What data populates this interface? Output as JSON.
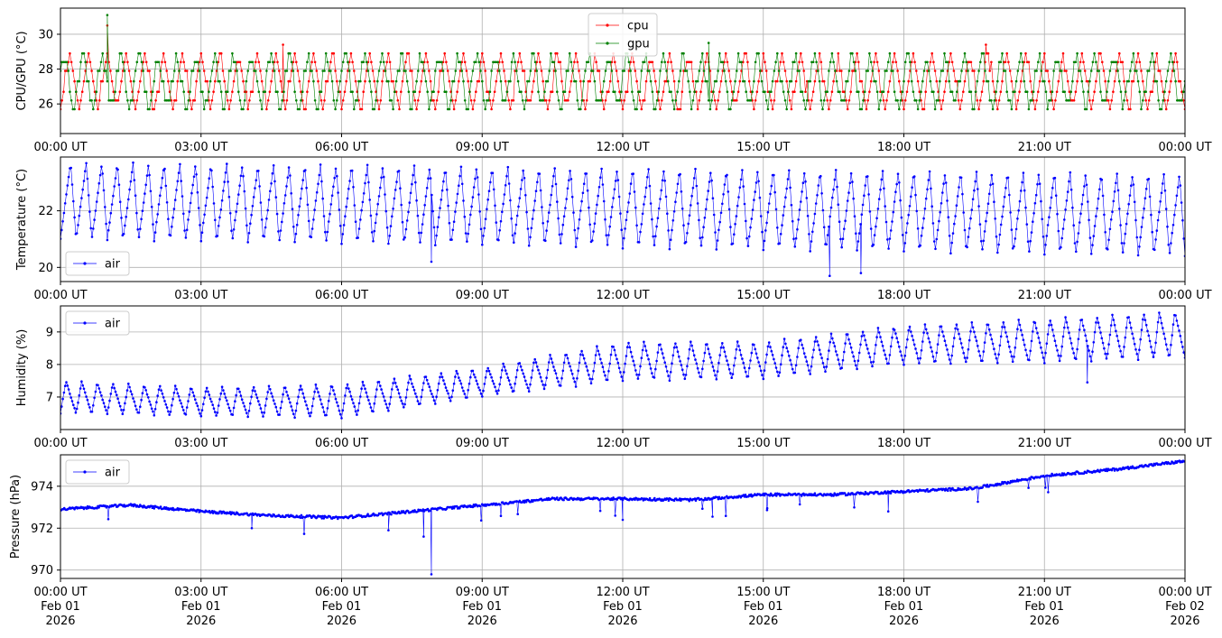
{
  "figure": {
    "background": "#ffffff",
    "grid_color": "#b0b0b0"
  },
  "chart_data": [
    {
      "type": "line",
      "ylabel": "CPU/GPU (°C)",
      "ylim": [
        24.3,
        31.5
      ],
      "yticks": [
        26,
        28,
        30
      ],
      "xlim": [
        "2026-02-01T00:00Z",
        "2026-02-02T00:00Z"
      ],
      "xtick_labels": [
        "00:00 UT",
        "03:00 UT",
        "06:00 UT",
        "09:00 UT",
        "12:00 UT",
        "15:00 UT",
        "18:00 UT",
        "21:00 UT",
        "00:00 UT"
      ],
      "grid": true,
      "legend": {
        "placement": "upper center",
        "entries": [
          "cpu",
          "gpu"
        ]
      },
      "series": [
        {
          "name": "cpu",
          "color": "#ff0000",
          "level_values": [
            25.7,
            26.2,
            26.7,
            27.3,
            27.9,
            28.4,
            28.9
          ],
          "typical_min": 25.7,
          "typical_max": 28.9,
          "spikes": [
            [
              "2026-02-01T01:00Z",
              30.5
            ],
            [
              "2026-02-01T04:45Z",
              29.4
            ],
            [
              "2026-02-01T19:45Z",
              29.4
            ]
          ]
        },
        {
          "name": "gpu",
          "color": "#008000",
          "level_values": [
            25.7,
            26.2,
            26.7,
            27.3,
            27.9,
            28.4,
            28.9
          ],
          "typical_min": 25.7,
          "typical_max": 28.9,
          "spikes": [
            [
              "2026-02-01T01:00Z",
              31.1
            ],
            [
              "2026-02-01T13:50Z",
              29.5
            ]
          ]
        }
      ]
    },
    {
      "type": "line",
      "ylabel": "Temperature (°C)",
      "ylim": [
        19.5,
        23.9
      ],
      "yticks": [
        20,
        22
      ],
      "xlim": [
        "2026-02-01T00:00Z",
        "2026-02-02T00:00Z"
      ],
      "xtick_labels": [
        "00:00 UT",
        "03:00 UT",
        "06:00 UT",
        "09:00 UT",
        "12:00 UT",
        "15:00 UT",
        "18:00 UT",
        "21:00 UT",
        "00:00 UT"
      ],
      "grid": true,
      "legend": {
        "placement": "lower left",
        "entries": [
          "air"
        ]
      },
      "series": [
        {
          "name": "air",
          "color": "#0000ff",
          "cycle_period_minutes": 20,
          "max_start": 23.7,
          "max_end": 23.3,
          "min_start": 21.0,
          "min_end": 20.4,
          "dips": [
            [
              "2026-02-01T07:55Z",
              20.2
            ],
            [
              "2026-02-01T16:25Z",
              19.7
            ],
            [
              "2026-02-01T17:05Z",
              19.8
            ]
          ]
        }
      ]
    },
    {
      "type": "line",
      "ylabel": "Humidity (%)",
      "ylim": [
        6.0,
        9.8
      ],
      "yticks": [
        7,
        8,
        9
      ],
      "xlim": [
        "2026-02-01T00:00Z",
        "2026-02-02T00:00Z"
      ],
      "xtick_labels": [
        "00:00 UT",
        "03:00 UT",
        "06:00 UT",
        "09:00 UT",
        "12:00 UT",
        "15:00 UT",
        "18:00 UT",
        "21:00 UT",
        "00:00 UT"
      ],
      "grid": true,
      "legend": {
        "placement": "upper left",
        "entries": [
          "air"
        ]
      },
      "series": [
        {
          "name": "air",
          "color": "#0000ff",
          "cycle_period_minutes": 20,
          "envelope": [
            [
              "2026-02-01T00:00Z",
              6.5,
              7.5
            ],
            [
              "2026-02-01T03:00Z",
              6.4,
              7.3
            ],
            [
              "2026-02-01T06:00Z",
              6.35,
              7.4
            ],
            [
              "2026-02-01T09:00Z",
              7.0,
              7.9
            ],
            [
              "2026-02-01T12:00Z",
              7.5,
              8.7
            ],
            [
              "2026-02-01T15:00Z",
              7.55,
              8.7
            ],
            [
              "2026-02-01T18:00Z",
              8.0,
              9.2
            ],
            [
              "2026-02-01T21:00Z",
              8.05,
              9.4
            ],
            [
              "2026-02-02T00:00Z",
              8.2,
              9.65
            ]
          ],
          "dips": [
            [
              "2026-02-01T21:55Z",
              7.45
            ]
          ]
        }
      ]
    },
    {
      "type": "line",
      "ylabel": "Pressure (hPa)",
      "ylim": [
        969.6,
        975.5
      ],
      "yticks": [
        970,
        972,
        974
      ],
      "xlim": [
        "2026-02-01T00:00Z",
        "2026-02-02T00:00Z"
      ],
      "xtick_labels": [
        "00:00 UT\nFeb 01\n2026",
        "03:00 UT\nFeb 01\n2026",
        "06:00 UT\nFeb 01\n2026",
        "09:00 UT\nFeb 01\n2026",
        "12:00 UT\nFeb 01\n2026",
        "15:00 UT\nFeb 01\n2026",
        "18:00 UT\nFeb 01\n2026",
        "21:00 UT\nFeb 01\n2026",
        "00:00 UT\nFeb 02\n2026"
      ],
      "grid": true,
      "legend": {
        "placement": "upper left",
        "entries": [
          "air"
        ]
      },
      "series": [
        {
          "name": "air",
          "color": "#0000ff",
          "trend": [
            [
              "2026-02-01T00:00Z",
              972.9
            ],
            [
              "2026-02-01T01:30Z",
              973.1
            ],
            [
              "2026-02-01T03:00Z",
              972.8
            ],
            [
              "2026-02-01T04:30Z",
              972.6
            ],
            [
              "2026-02-01T06:00Z",
              972.5
            ],
            [
              "2026-02-01T07:30Z",
              972.8
            ],
            [
              "2026-02-01T09:00Z",
              973.1
            ],
            [
              "2026-02-01T10:30Z",
              973.4
            ],
            [
              "2026-02-01T12:00Z",
              973.4
            ],
            [
              "2026-02-01T13:30Z",
              973.35
            ],
            [
              "2026-02-01T15:00Z",
              973.6
            ],
            [
              "2026-02-01T16:30Z",
              973.6
            ],
            [
              "2026-02-01T18:00Z",
              973.75
            ],
            [
              "2026-02-01T19:30Z",
              973.9
            ],
            [
              "2026-02-01T21:00Z",
              974.5
            ],
            [
              "2026-02-01T22:30Z",
              974.8
            ],
            [
              "2026-02-02T00:00Z",
              975.2
            ]
          ],
          "dips": [
            [
              "2026-02-01T07:45Z",
              971.6
            ],
            [
              "2026-02-01T07:55Z",
              969.8
            ],
            [
              "2026-02-01T04:05Z",
              972.0
            ],
            [
              "2026-02-01T07:00Z",
              971.9
            ],
            [
              "2026-02-01T12:00Z",
              972.4
            ],
            [
              "2026-02-01T13:55Z",
              972.55
            ],
            [
              "2026-02-01T15:05Z",
              972.95
            ],
            [
              "2026-02-01T17:40Z",
              972.8
            ]
          ]
        }
      ]
    }
  ]
}
